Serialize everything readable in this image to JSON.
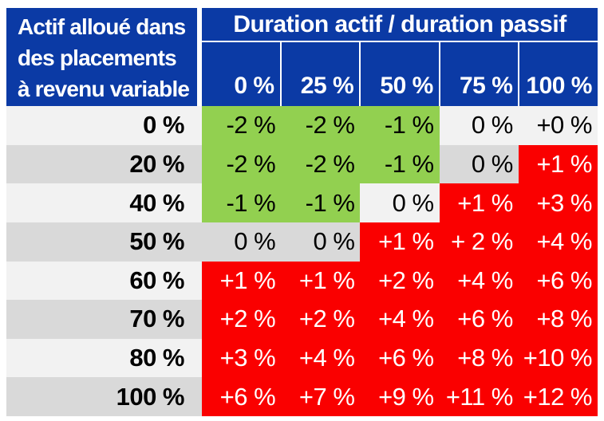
{
  "colors": {
    "header_blue": "#0b3aa5",
    "negative_green": "#92d050",
    "positive_red": "#fa0000",
    "stripe_light": "#f2f2f2",
    "stripe_dark": "#d9d9d9",
    "text_light": "#ffffff",
    "text_dark": "#000000"
  },
  "header": {
    "row_axis_title_lines": [
      "Actif alloué dans",
      "des placements",
      "à revenu variable"
    ],
    "col_group_title": "Duration actif / duration passif",
    "col_labels": [
      "0 %",
      "25 %",
      "50 %",
      "75 %",
      "100 %"
    ]
  },
  "rows": [
    {
      "label": "0 %",
      "stripe": "light",
      "cells": [
        {
          "text": "-2 %",
          "bg": "green"
        },
        {
          "text": "-2 %",
          "bg": "green"
        },
        {
          "text": "-1 %",
          "bg": "green"
        },
        {
          "text": "0 %",
          "bg": "light"
        },
        {
          "text": "+0 %",
          "bg": "light"
        }
      ]
    },
    {
      "label": "20 %",
      "stripe": "dark",
      "cells": [
        {
          "text": "-2 %",
          "bg": "green"
        },
        {
          "text": "-2 %",
          "bg": "green"
        },
        {
          "text": "-1 %",
          "bg": "green"
        },
        {
          "text": "0 %",
          "bg": "dark"
        },
        {
          "text": "+1 %",
          "bg": "red"
        }
      ]
    },
    {
      "label": "40 %",
      "stripe": "light",
      "cells": [
        {
          "text": "-1 %",
          "bg": "green"
        },
        {
          "text": "-1 %",
          "bg": "green"
        },
        {
          "text": "0 %",
          "bg": "light"
        },
        {
          "text": "+1 %",
          "bg": "red"
        },
        {
          "text": "+3 %",
          "bg": "red"
        }
      ]
    },
    {
      "label": "50 %",
      "stripe": "dark",
      "cells": [
        {
          "text": "0 %",
          "bg": "dark"
        },
        {
          "text": "0 %",
          "bg": "dark"
        },
        {
          "text": "+1 %",
          "bg": "red"
        },
        {
          "text": "+ 2 %",
          "bg": "red"
        },
        {
          "text": "+4 %",
          "bg": "red"
        }
      ]
    },
    {
      "label": "60 %",
      "stripe": "light",
      "cells": [
        {
          "text": "+1 %",
          "bg": "red"
        },
        {
          "text": "+1 %",
          "bg": "red"
        },
        {
          "text": "+2 %",
          "bg": "red"
        },
        {
          "text": "+4 %",
          "bg": "red"
        },
        {
          "text": "+6 %",
          "bg": "red"
        }
      ]
    },
    {
      "label": "70 %",
      "stripe": "dark",
      "cells": [
        {
          "text": "+2 %",
          "bg": "red"
        },
        {
          "text": "+2 %",
          "bg": "red"
        },
        {
          "text": "+4 %",
          "bg": "red"
        },
        {
          "text": "+6 %",
          "bg": "red"
        },
        {
          "text": "+8 %",
          "bg": "red"
        }
      ]
    },
    {
      "label": "80 %",
      "stripe": "light",
      "cells": [
        {
          "text": "+3 %",
          "bg": "red"
        },
        {
          "text": "+4 %",
          "bg": "red"
        },
        {
          "text": "+6 %",
          "bg": "red"
        },
        {
          "text": "+8 %",
          "bg": "red"
        },
        {
          "text": "+10 %",
          "bg": "red"
        }
      ]
    },
    {
      "label": "100 %",
      "stripe": "dark",
      "cells": [
        {
          "text": "+6 %",
          "bg": "red"
        },
        {
          "text": "+7 %",
          "bg": "red"
        },
        {
          "text": "+9 %",
          "bg": "red"
        },
        {
          "text": "+11 %",
          "bg": "red"
        },
        {
          "text": "+12 %",
          "bg": "red"
        }
      ]
    }
  ],
  "chart_data": {
    "type": "heatmap",
    "title": "",
    "row_axis_label": "Actif alloué dans des placements à revenu variable",
    "col_axis_label": "Duration actif / duration passif",
    "rows": [
      "0 %",
      "20 %",
      "40 %",
      "50 %",
      "60 %",
      "70 %",
      "80 %",
      "100 %"
    ],
    "columns": [
      "0 %",
      "25 %",
      "50 %",
      "75 %",
      "100 %"
    ],
    "values_percent": [
      [
        -2,
        -2,
        -1,
        0,
        0
      ],
      [
        -2,
        -2,
        -1,
        0,
        1
      ],
      [
        -1,
        -1,
        0,
        1,
        3
      ],
      [
        0,
        0,
        1,
        2,
        4
      ],
      [
        1,
        1,
        2,
        4,
        6
      ],
      [
        2,
        2,
        4,
        6,
        8
      ],
      [
        3,
        4,
        6,
        8,
        10
      ],
      [
        6,
        7,
        9,
        11,
        12
      ]
    ],
    "cell_labels": [
      [
        "-2 %",
        "-2 %",
        "-1 %",
        "0 %",
        "+0 %"
      ],
      [
        "-2 %",
        "-2 %",
        "-1 %",
        "0 %",
        "+1 %"
      ],
      [
        "-1 %",
        "-1 %",
        "0 %",
        "+1 %",
        "+3 %"
      ],
      [
        "0 %",
        "0 %",
        "+1 %",
        "+ 2 %",
        "+4 %"
      ],
      [
        "+1 %",
        "+1 %",
        "+2 %",
        "+4 %",
        "+6 %"
      ],
      [
        "+2 %",
        "+2 %",
        "+4 %",
        "+6 %",
        "+8 %"
      ],
      [
        "+3 %",
        "+4 %",
        "+6 %",
        "+8 %",
        "+10 %"
      ],
      [
        "+6 %",
        "+7 %",
        "+9 %",
        "+11 %",
        "+12 %"
      ]
    ],
    "cell_zones": [
      [
        "green",
        "green",
        "green",
        "neutral",
        "neutral"
      ],
      [
        "green",
        "green",
        "green",
        "neutral",
        "red"
      ],
      [
        "green",
        "green",
        "neutral",
        "red",
        "red"
      ],
      [
        "neutral",
        "neutral",
        "red",
        "red",
        "red"
      ],
      [
        "red",
        "red",
        "red",
        "red",
        "red"
      ],
      [
        "red",
        "red",
        "red",
        "red",
        "red"
      ],
      [
        "red",
        "red",
        "red",
        "red",
        "red"
      ],
      [
        "red",
        "red",
        "red",
        "red",
        "red"
      ]
    ],
    "legend_position": "none",
    "grid": false
  }
}
